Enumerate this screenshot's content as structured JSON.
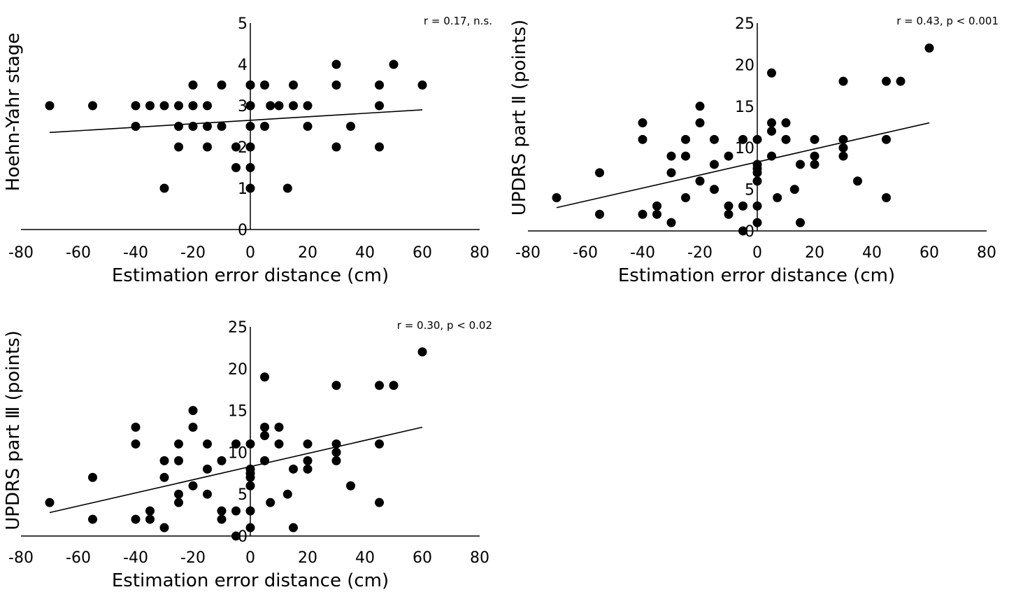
{
  "figure": {
    "background": "#ffffff",
    "ink": "#000000"
  },
  "chart_data": [
    {
      "type": "scatter",
      "panel": "top-left",
      "title": "",
      "xlabel": "Estimation error distance (cm)",
      "ylabel": "Hoehn-Yahr stage",
      "xlim": [
        -80,
        80
      ],
      "ylim": [
        0,
        5
      ],
      "xticks": [
        -80,
        -60,
        -40,
        -20,
        0,
        20,
        40,
        60,
        80
      ],
      "yticks": [
        0,
        1,
        2,
        3,
        4,
        5
      ],
      "x_tick_labels": [
        "-80",
        "-60",
        "-40",
        "-20",
        "0",
        "20",
        "40",
        "60",
        "80"
      ],
      "y_tick_labels": [
        "0",
        "1",
        "2",
        "3",
        "4",
        "5"
      ],
      "y_axis_at_x": 0,
      "grid": false,
      "annotation": "r = 0.17, n.s.",
      "trendline": {
        "x": [
          -70,
          60
        ],
        "y": [
          2.35,
          2.9
        ]
      },
      "series": [
        {
          "x": [
            -70,
            -55,
            -40,
            -40,
            -35,
            -30,
            -30,
            -25,
            -25,
            -25,
            -20,
            -20,
            -20,
            -15,
            -15,
            -15,
            -10,
            -10,
            -5,
            -5,
            0,
            0,
            0,
            0,
            0,
            0,
            0,
            0,
            5,
            5,
            7,
            10,
            13,
            15,
            15,
            20,
            20,
            30,
            30,
            30,
            35,
            45,
            45,
            45,
            50,
            60
          ],
          "y": [
            3,
            3,
            3,
            2.5,
            3,
            3,
            1,
            3,
            2.5,
            2,
            3.5,
            3,
            2.5,
            3,
            2.5,
            2,
            3.5,
            2.5,
            2,
            1.5,
            3.5,
            3,
            2.5,
            2,
            1.5,
            1,
            3.5,
            3,
            3.5,
            2.5,
            3,
            3,
            1,
            3.5,
            3,
            3,
            2.5,
            4,
            3.5,
            2,
            2.5,
            3.5,
            3,
            2,
            4,
            3.5
          ]
        }
      ]
    },
    {
      "type": "scatter",
      "panel": "top-right",
      "title": "",
      "xlabel": "Estimation error distance (cm)",
      "ylabel": "UPDRS part Ⅱ (points)",
      "xlim": [
        -80,
        80
      ],
      "ylim": [
        0,
        25
      ],
      "xticks": [
        -80,
        -60,
        -40,
        -20,
        0,
        20,
        40,
        60,
        80
      ],
      "yticks": [
        0,
        5,
        10,
        15,
        20,
        25
      ],
      "x_tick_labels": [
        "-80",
        "-60",
        "-40",
        "-20",
        "0",
        "20",
        "40",
        "60",
        "80"
      ],
      "y_tick_labels": [
        "0",
        "5",
        "10",
        "15",
        "20",
        "25"
      ],
      "y_axis_at_x": 0,
      "grid": false,
      "annotation": "r = 0.43, p < 0.001",
      "trendline": {
        "x": [
          -70,
          60
        ],
        "y": [
          2.8,
          13
        ]
      },
      "series": [
        {
          "x": [
            -70,
            -55,
            -55,
            -40,
            -40,
            -40,
            -35,
            -35,
            -30,
            -30,
            -30,
            -25,
            -25,
            -25,
            -20,
            -20,
            -20,
            -15,
            -15,
            -15,
            -10,
            -10,
            -10,
            -5,
            -5,
            -5,
            0,
            0,
            0,
            0,
            0,
            0,
            0,
            5,
            5,
            5,
            5,
            7,
            10,
            10,
            13,
            15,
            15,
            20,
            20,
            20,
            30,
            30,
            30,
            30,
            35,
            45,
            45,
            45,
            50,
            60
          ],
          "y": [
            4,
            7,
            2,
            13,
            11,
            2,
            3,
            2,
            9,
            7,
            1,
            11,
            9,
            4,
            15,
            13,
            6,
            11,
            8,
            5,
            9,
            3,
            2,
            11,
            3,
            0,
            11,
            8,
            7,
            6,
            3,
            1,
            7.5,
            19,
            13,
            12,
            9,
            4,
            13,
            11,
            5,
            8,
            1,
            11,
            9,
            8,
            18,
            11,
            10,
            9,
            6,
            18,
            11,
            4,
            18,
            22
          ]
        }
      ]
    },
    {
      "type": "scatter",
      "panel": "bottom-left",
      "title": "",
      "xlabel": "Estimation error distance (cm)",
      "ylabel": "UPDRS part Ⅲ (points)",
      "xlim": [
        -80,
        80
      ],
      "ylim": [
        0,
        25
      ],
      "xticks": [
        -80,
        -60,
        -40,
        -20,
        0,
        20,
        40,
        60,
        80
      ],
      "yticks": [
        0,
        5,
        10,
        15,
        20,
        25
      ],
      "x_tick_labels": [
        "-80",
        "-60",
        "-40",
        "-20",
        "0",
        "20",
        "40",
        "60",
        "80"
      ],
      "y_tick_labels": [
        "0",
        "5",
        "10",
        "15",
        "20",
        "25"
      ],
      "y_axis_at_x": 0,
      "grid": false,
      "annotation": "r = 0.30, p < 0.02",
      "trendline": {
        "x": [
          -70,
          60
        ],
        "y": [
          2.8,
          13
        ]
      },
      "series": [
        {
          "x": [
            -70,
            -55,
            -55,
            -40,
            -40,
            -40,
            -35,
            -35,
            -30,
            -30,
            -30,
            -25,
            -25,
            -25,
            -25,
            -20,
            -20,
            -20,
            -15,
            -15,
            -15,
            -10,
            -10,
            -10,
            -5,
            -5,
            -5,
            0,
            0,
            0,
            0,
            0,
            0,
            0,
            5,
            5,
            5,
            5,
            7,
            10,
            10,
            13,
            15,
            15,
            20,
            20,
            20,
            30,
            30,
            30,
            30,
            35,
            45,
            45,
            45,
            50,
            60
          ],
          "y": [
            4,
            7,
            2,
            13,
            11,
            2,
            3,
            2,
            9,
            7,
            1,
            11,
            9,
            5,
            4,
            15,
            13,
            6,
            11,
            8,
            5,
            9,
            3,
            2,
            11,
            3,
            0,
            11,
            8,
            7,
            6,
            3,
            1,
            7.5,
            19,
            13,
            12,
            9,
            4,
            13,
            11,
            5,
            8,
            1,
            11,
            9,
            8,
            18,
            11,
            10,
            9,
            6,
            18,
            11,
            4,
            18,
            22
          ]
        }
      ]
    }
  ]
}
